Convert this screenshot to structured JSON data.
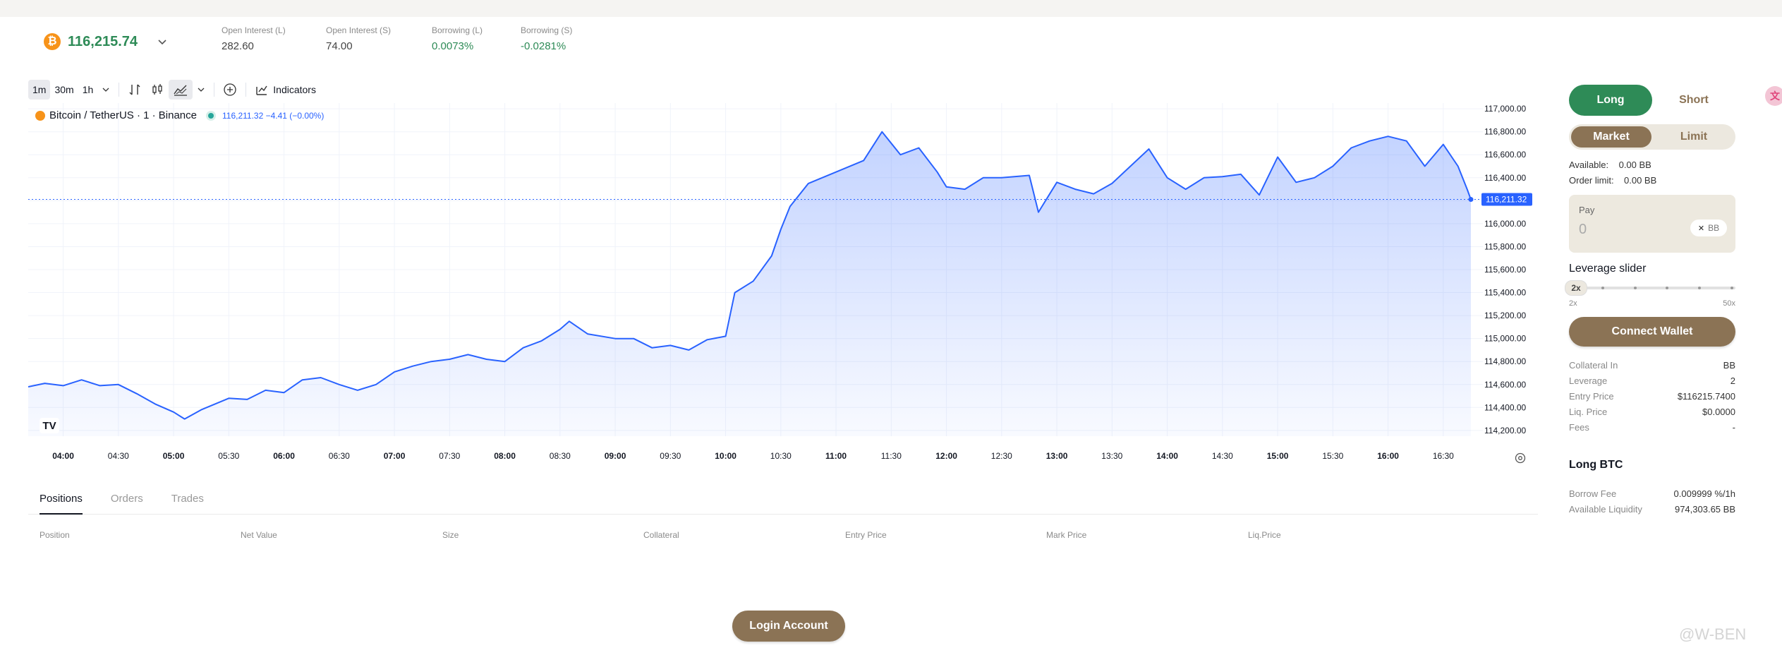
{
  "header": {
    "coin_icon": "bitcoin-icon",
    "price": "116,215.74",
    "stats": [
      {
        "label": "Open Interest (L)",
        "value": "282.60",
        "color": "#444444"
      },
      {
        "label": "Open Interest (S)",
        "value": "74.00",
        "color": "#444444"
      },
      {
        "label": "Borrowing (L)",
        "value": "0.0073%",
        "color": "#2e8b57"
      },
      {
        "label": "Borrowing (S)",
        "value": "-0.0281%",
        "color": "#2e8b57"
      }
    ]
  },
  "toolbar": {
    "intervals": [
      "1m",
      "30m",
      "1h"
    ],
    "active_interval": "1m",
    "indicators_label": "Indicators"
  },
  "legend": {
    "symbol": "Bitcoin / TetherUS · 1 · Binance",
    "value": "116,211.32  −4.41 (−0.00%)"
  },
  "chart_data": {
    "type": "area",
    "symbol": "BTCUSDT",
    "y_ticks": [
      "117,000.00",
      "116,800.00",
      "116,600.00",
      "116,400.00",
      "116,200.00",
      "116,000.00",
      "115,800.00",
      "115,600.00",
      "115,400.00",
      "115,200.00",
      "115,000.00",
      "114,800.00",
      "114,600.00",
      "114,400.00",
      "114,200.00"
    ],
    "x_ticks": [
      "04:00",
      "04:30",
      "05:00",
      "05:30",
      "06:00",
      "06:30",
      "07:00",
      "07:30",
      "08:00",
      "08:30",
      "09:00",
      "09:30",
      "10:00",
      "10:30",
      "11:00",
      "11:30",
      "12:00",
      "12:30",
      "13:00",
      "13:30",
      "14:00",
      "14:30",
      "15:00",
      "15:30",
      "16:00",
      "16:30"
    ],
    "bold_ticks": [
      "04:00",
      "05:00",
      "06:00",
      "07:00",
      "08:00",
      "09:00",
      "10:00",
      "11:00",
      "12:00",
      "13:00",
      "14:00",
      "15:00",
      "16:00"
    ],
    "ylim": [
      114150,
      117050
    ],
    "xlim": [
      "03:41",
      "16:50"
    ],
    "last_price_label": "116,211.32",
    "last_price": 116211.32,
    "line_color": "#2962ff",
    "series": [
      {
        "values": [
          [
            "03:41",
            114580
          ],
          [
            "03:50",
            114610
          ],
          [
            "04:00",
            114590
          ],
          [
            "04:10",
            114640
          ],
          [
            "04:20",
            114590
          ],
          [
            "04:30",
            114600
          ],
          [
            "04:40",
            114520
          ],
          [
            "04:50",
            114430
          ],
          [
            "05:00",
            114360
          ],
          [
            "05:06",
            114300
          ],
          [
            "05:15",
            114380
          ],
          [
            "05:30",
            114480
          ],
          [
            "05:40",
            114470
          ],
          [
            "05:50",
            114550
          ],
          [
            "06:00",
            114530
          ],
          [
            "06:10",
            114640
          ],
          [
            "06:20",
            114660
          ],
          [
            "06:30",
            114600
          ],
          [
            "06:40",
            114550
          ],
          [
            "06:50",
            114600
          ],
          [
            "07:00",
            114710
          ],
          [
            "07:10",
            114760
          ],
          [
            "07:20",
            114800
          ],
          [
            "07:30",
            114820
          ],
          [
            "07:40",
            114860
          ],
          [
            "07:50",
            114820
          ],
          [
            "08:00",
            114800
          ],
          [
            "08:10",
            114920
          ],
          [
            "08:20",
            114980
          ],
          [
            "08:30",
            115080
          ],
          [
            "08:35",
            115150
          ],
          [
            "08:45",
            115040
          ],
          [
            "09:00",
            115000
          ],
          [
            "09:10",
            115000
          ],
          [
            "09:20",
            114920
          ],
          [
            "09:30",
            114940
          ],
          [
            "09:40",
            114900
          ],
          [
            "09:50",
            114990
          ],
          [
            "10:00",
            115020
          ],
          [
            "10:05",
            115400
          ],
          [
            "10:15",
            115500
          ],
          [
            "10:25",
            115720
          ],
          [
            "10:30",
            115950
          ],
          [
            "10:35",
            116150
          ],
          [
            "10:45",
            116350
          ],
          [
            "11:00",
            116450
          ],
          [
            "11:15",
            116550
          ],
          [
            "11:25",
            116800
          ],
          [
            "11:35",
            116600
          ],
          [
            "11:45",
            116660
          ],
          [
            "11:55",
            116450
          ],
          [
            "12:00",
            116320
          ],
          [
            "12:10",
            116300
          ],
          [
            "12:20",
            116400
          ],
          [
            "12:30",
            116400
          ],
          [
            "12:45",
            116420
          ],
          [
            "12:50",
            116100
          ],
          [
            "13:00",
            116360
          ],
          [
            "13:10",
            116300
          ],
          [
            "13:20",
            116260
          ],
          [
            "13:30",
            116350
          ],
          [
            "13:40",
            116500
          ],
          [
            "13:50",
            116650
          ],
          [
            "14:00",
            116400
          ],
          [
            "14:10",
            116300
          ],
          [
            "14:20",
            116400
          ],
          [
            "14:30",
            116410
          ],
          [
            "14:40",
            116430
          ],
          [
            "14:50",
            116250
          ],
          [
            "15:00",
            116580
          ],
          [
            "15:10",
            116360
          ],
          [
            "15:20",
            116400
          ],
          [
            "15:30",
            116500
          ],
          [
            "15:40",
            116660
          ],
          [
            "15:50",
            116720
          ],
          [
            "16:00",
            116760
          ],
          [
            "16:10",
            116720
          ],
          [
            "16:20",
            116500
          ],
          [
            "16:30",
            116690
          ],
          [
            "16:38",
            116500
          ],
          [
            "16:43",
            116300
          ],
          [
            "16:45",
            116211
          ]
        ]
      }
    ]
  },
  "tv_logo": "TV",
  "bottom": {
    "tabs": [
      "Positions",
      "Orders",
      "Trades"
    ],
    "active_tab": "Positions",
    "columns": [
      "Position",
      "Net Value",
      "Size",
      "Collateral",
      "Entry Price",
      "Mark Price",
      "Liq.Price"
    ],
    "login_label": "Login Account"
  },
  "panel": {
    "long_label": "Long",
    "short_label": "Short",
    "market_label": "Market",
    "limit_label": "Limit",
    "available_label": "Available:",
    "available_value": "0.00 BB",
    "order_limit_label": "Order limit:",
    "order_limit_value": "0.00 BB",
    "pay_label": "Pay",
    "pay_value": "0",
    "pay_token": "BB",
    "leverage_title": "Leverage slider",
    "leverage_value": "2x",
    "leverage_fraction": 0.0,
    "leverage_min": "2x",
    "leverage_max": "50x",
    "connect_label": "Connect Wallet",
    "details": [
      {
        "label": "Collateral In",
        "value": "BB"
      },
      {
        "label": "Leverage",
        "value": "2"
      },
      {
        "label": "Entry Price",
        "value": "$116215.7400"
      },
      {
        "label": "Liq. Price",
        "value": "$0.0000"
      },
      {
        "label": "Fees",
        "value": "-"
      }
    ],
    "long_btc_title": "Long BTC",
    "fees": [
      {
        "label": "Borrow Fee",
        "value": "0.009999 %/1h"
      },
      {
        "label": "Available Liquidity",
        "value": "974,303.65 BB"
      }
    ]
  },
  "watermark": "@W-BEN"
}
